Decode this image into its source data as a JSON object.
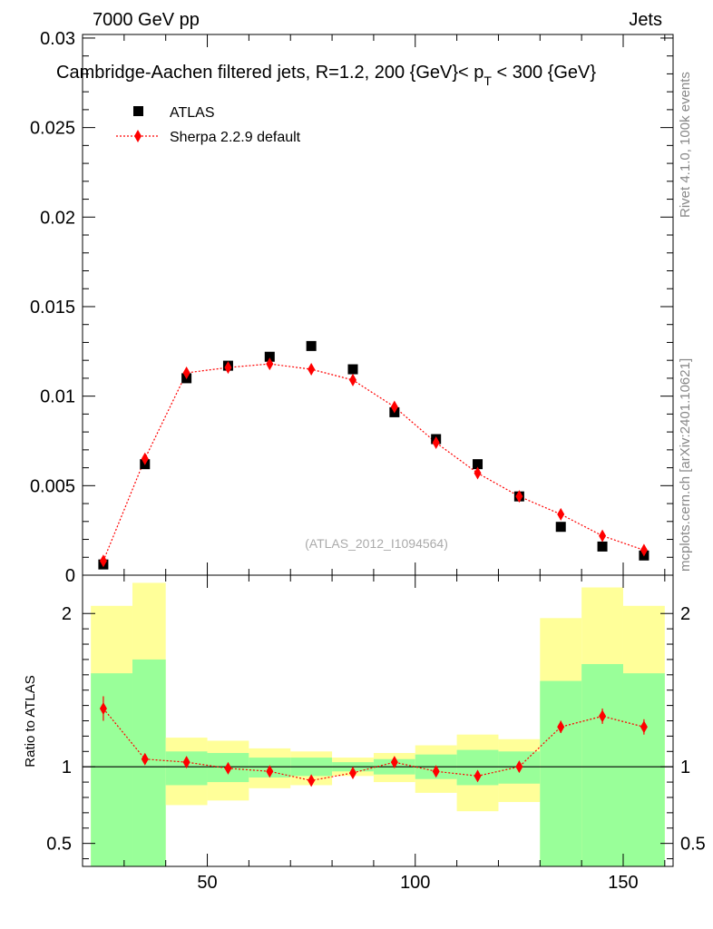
{
  "header": {
    "left": "7000 GeV pp",
    "right": "Jets"
  },
  "title": {
    "main": "Cambridge-Aachen filtered jets, R=1.2, 200 {GeV}< p",
    "sub": "T",
    "tail": " < 300 {GeV}"
  },
  "side_labels": {
    "rivet": "Rivet 4.1.0,  100k events",
    "source": "mcplots.cern.ch [arXiv:2401.10621]"
  },
  "watermark": "(ATLAS_2012_I1094564)",
  "legend": {
    "data_label": "ATLAS",
    "mc_label": "Sherpa 2.2.9 default"
  },
  "ratio_ylabel": "Ratio to ATLAS",
  "colors": {
    "data": "#000000",
    "mc": "#ff0000",
    "band_inner": "#99ff99",
    "band_outer": "#ffff99"
  },
  "chart_data": [
    {
      "type": "scatter",
      "name": "main",
      "xlim": [
        20,
        162
      ],
      "ylim": [
        0,
        0.0302
      ],
      "yticks": [
        0,
        0.005,
        0.01,
        0.015,
        0.02,
        0.025,
        0.03
      ],
      "ytick_labels": [
        "0",
        "0.005",
        "0.01",
        "0.015",
        "0.02",
        "0.025",
        "0.03"
      ],
      "xticks": [
        50,
        100,
        150
      ],
      "series": [
        {
          "name": "ATLAS",
          "x": [
            25,
            35,
            45,
            55,
            65,
            75,
            85,
            95,
            105,
            115,
            125,
            135,
            145,
            155
          ],
          "values": [
            0.0006,
            0.0062,
            0.011,
            0.0117,
            0.0122,
            0.0128,
            0.0115,
            0.0091,
            0.0076,
            0.0062,
            0.0044,
            0.0027,
            0.0016,
            0.0011
          ]
        },
        {
          "name": "Sherpa 2.2.9 default",
          "x": [
            25,
            35,
            45,
            55,
            65,
            75,
            85,
            95,
            105,
            115,
            125,
            135,
            145,
            155
          ],
          "values": [
            0.0008,
            0.0065,
            0.0113,
            0.0116,
            0.0118,
            0.0115,
            0.0109,
            0.0094,
            0.0074,
            0.0057,
            0.0044,
            0.0034,
            0.0022,
            0.0014
          ]
        }
      ]
    },
    {
      "type": "ratio",
      "name": "ratio",
      "xlim": [
        20,
        162
      ],
      "ylim": [
        0.35,
        2.25
      ],
      "yticks": [
        0.5,
        1,
        2
      ],
      "ytick_labels": [
        "0.5",
        "1",
        "2"
      ],
      "xticks": [
        50,
        100,
        150
      ],
      "xtick_labels": [
        "50",
        "100",
        "150"
      ],
      "bins": [
        {
          "lo": 22,
          "hi": 32,
          "inner": [
            0.35,
            1.61
          ],
          "outer": [
            0.35,
            2.05
          ]
        },
        {
          "lo": 32,
          "hi": 40,
          "inner": [
            0.35,
            1.7
          ],
          "outer": [
            0.35,
            2.2
          ]
        },
        {
          "lo": 40,
          "hi": 50,
          "inner": [
            0.88,
            1.1
          ],
          "outer": [
            0.75,
            1.19
          ]
        },
        {
          "lo": 50,
          "hi": 60,
          "inner": [
            0.9,
            1.09
          ],
          "outer": [
            0.78,
            1.17
          ]
        },
        {
          "lo": 60,
          "hi": 70,
          "inner": [
            0.93,
            1.06
          ],
          "outer": [
            0.86,
            1.12
          ]
        },
        {
          "lo": 70,
          "hi": 80,
          "inner": [
            0.94,
            1.06
          ],
          "outer": [
            0.88,
            1.1
          ]
        },
        {
          "lo": 80,
          "hi": 90,
          "inner": [
            0.97,
            1.03
          ],
          "outer": [
            0.94,
            1.06
          ]
        },
        {
          "lo": 90,
          "hi": 100,
          "inner": [
            0.95,
            1.05
          ],
          "outer": [
            0.9,
            1.09
          ]
        },
        {
          "lo": 100,
          "hi": 110,
          "inner": [
            0.92,
            1.08
          ],
          "outer": [
            0.83,
            1.14
          ]
        },
        {
          "lo": 110,
          "hi": 120,
          "inner": [
            0.88,
            1.11
          ],
          "outer": [
            0.71,
            1.21
          ]
        },
        {
          "lo": 120,
          "hi": 130,
          "inner": [
            0.89,
            1.1
          ],
          "outer": [
            0.77,
            1.18
          ]
        },
        {
          "lo": 130,
          "hi": 140,
          "inner": [
            0.35,
            1.56
          ],
          "outer": [
            0.35,
            1.97
          ]
        },
        {
          "lo": 140,
          "hi": 150,
          "inner": [
            0.35,
            1.67
          ],
          "outer": [
            0.35,
            2.17
          ]
        },
        {
          "lo": 150,
          "hi": 160,
          "inner": [
            0.35,
            1.61
          ],
          "outer": [
            0.35,
            2.05
          ]
        }
      ],
      "points": {
        "x": [
          25,
          35,
          45,
          55,
          65,
          75,
          85,
          95,
          105,
          115,
          125,
          135,
          145,
          155
        ],
        "values": [
          1.38,
          1.05,
          1.03,
          0.99,
          0.97,
          0.91,
          0.96,
          1.03,
          0.97,
          0.94,
          1.0,
          1.26,
          1.33,
          1.26
        ],
        "err": [
          0.08,
          0.02,
          0.02,
          0.01,
          0.01,
          0.02,
          0.02,
          0.02,
          0.02,
          0.03,
          0.03,
          0.04,
          0.05,
          0.05
        ]
      }
    }
  ]
}
